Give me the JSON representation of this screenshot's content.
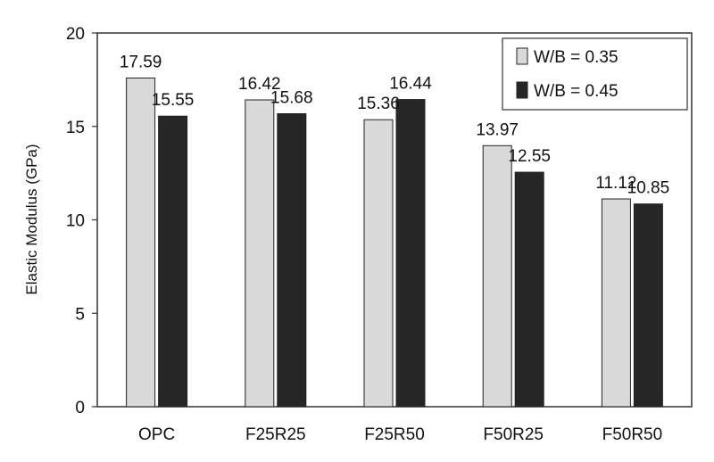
{
  "chart_data": {
    "type": "bar",
    "categories": [
      "OPC",
      "F25R25",
      "F25R50",
      "F50R25",
      "F50R50"
    ],
    "series": [
      {
        "name": "W/B = 0.35",
        "values": [
          17.59,
          16.42,
          15.36,
          13.97,
          11.12
        ],
        "color": "#d9d9d9"
      },
      {
        "name": "W/B = 0.45",
        "values": [
          15.55,
          15.68,
          16.44,
          12.55,
          10.85
        ],
        "color": "#262626"
      }
    ],
    "value_labels": [
      [
        "17.59",
        "16.42",
        "15.36",
        "13.97",
        "11.12"
      ],
      [
        "15.55",
        "15.68",
        "16.44",
        "12.55",
        "10.85"
      ]
    ],
    "title": "",
    "xlabel": "",
    "ylabel": "Elastic Modulus  (GPa)",
    "ylim": [
      0,
      20
    ],
    "yticks": [
      0,
      5,
      10,
      15,
      20
    ],
    "grid": false,
    "legend_position": "top-right"
  }
}
